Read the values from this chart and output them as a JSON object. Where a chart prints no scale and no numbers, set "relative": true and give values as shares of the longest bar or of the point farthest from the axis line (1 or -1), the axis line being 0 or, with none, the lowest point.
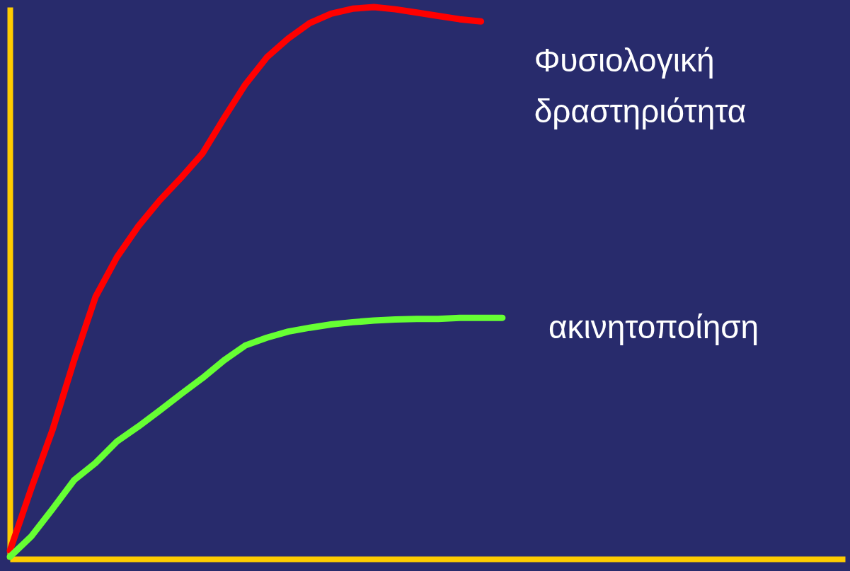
{
  "chart_data": {
    "type": "line",
    "relative": true,
    "grid": false,
    "line_style": "solid",
    "categories": [
      null,
      null,
      null,
      null,
      null,
      null,
      null,
      null,
      null,
      null,
      null,
      null,
      null,
      null,
      null,
      null,
      null,
      null,
      null,
      null,
      null,
      null,
      null,
      null,
      null,
      null,
      null,
      null,
      null,
      null,
      null,
      null,
      null,
      null,
      null,
      null,
      null,
      null,
      null,
      null
    ],
    "series": [
      {
        "name": "Φυσιολογική δραστηριότητα",
        "color": "#ff0000",
        "values": [
          0.015,
          0.128,
          0.235,
          0.36,
          0.475,
          0.547,
          0.603,
          0.65,
          0.691,
          0.735,
          0.799,
          0.86,
          0.909,
          0.943,
          0.971,
          0.988,
          0.997,
          1.0,
          0.996,
          0.99,
          0.984,
          0.978,
          0.974,
          null,
          null,
          null,
          null,
          null,
          null,
          null,
          null,
          null,
          null,
          null,
          null,
          null,
          null,
          null,
          null,
          null
        ]
      },
      {
        "name": "ακινητοποίηση",
        "color": "#66ff33",
        "values": [
          0.004,
          0.041,
          0.091,
          0.143,
          0.174,
          0.213,
          0.24,
          0.269,
          0.299,
          0.328,
          0.36,
          0.387,
          0.401,
          0.412,
          0.419,
          0.425,
          0.429,
          0.432,
          0.434,
          0.435,
          0.435,
          0.437,
          0.437,
          0.437,
          null,
          null,
          null,
          null,
          null,
          null,
          null,
          null,
          null,
          null,
          null,
          null,
          null,
          null,
          null,
          null
        ]
      }
    ]
  }
}
